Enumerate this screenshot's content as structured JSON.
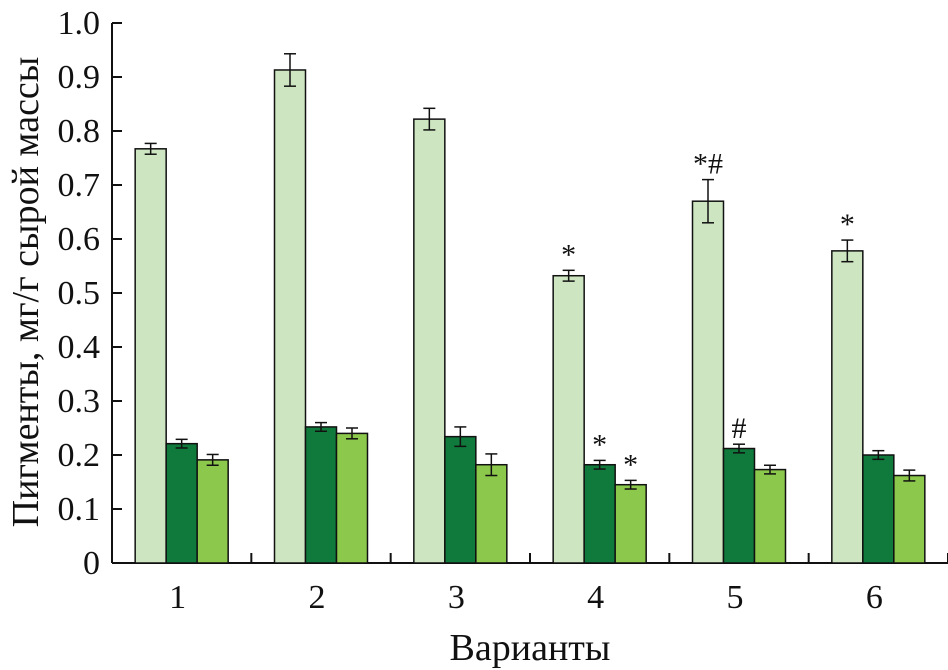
{
  "chart_data": {
    "type": "bar",
    "xlabel": "Варианты",
    "ylabel": "Пигменты, мг/г сырой массы",
    "ylim": [
      0,
      1.0
    ],
    "yticks": [
      "0",
      "0.1",
      "0.2",
      "0.3",
      "0.4",
      "0.5",
      "0.6",
      "0.7",
      "0.8",
      "0.9",
      "1.0"
    ],
    "categories": [
      "1",
      "2",
      "3",
      "4",
      "5",
      "6"
    ],
    "series": [
      {
        "color": "#cde6c1",
        "values": [
          0.767,
          0.913,
          0.822,
          0.532,
          0.67,
          0.578
        ],
        "errors": [
          0.01,
          0.03,
          0.02,
          0.01,
          0.04,
          0.02
        ],
        "annotations": [
          "",
          "",
          "",
          "*",
          "*#",
          "*"
        ]
      },
      {
        "color": "#0f7a3c",
        "values": [
          0.221,
          0.252,
          0.234,
          0.182,
          0.212,
          0.2
        ],
        "errors": [
          0.008,
          0.008,
          0.018,
          0.008,
          0.008,
          0.008
        ],
        "annotations": [
          "",
          "",
          "",
          "*",
          "#",
          ""
        ]
      },
      {
        "color": "#8cc84b",
        "values": [
          0.191,
          0.24,
          0.182,
          0.145,
          0.173,
          0.162
        ],
        "errors": [
          0.01,
          0.01,
          0.02,
          0.008,
          0.008,
          0.01
        ],
        "annotations": [
          "",
          "",
          "",
          "*",
          "",
          ""
        ]
      }
    ],
    "grid": false,
    "legend": "none"
  }
}
